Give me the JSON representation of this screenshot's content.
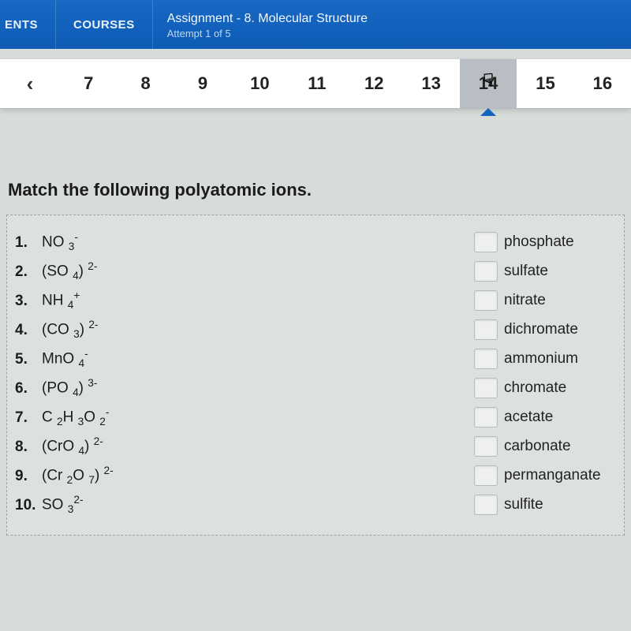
{
  "header": {
    "nav_ents": "ENTS",
    "nav_courses": "COURSES",
    "assignment_prefix": "Assignment",
    "assignment_sep": " - ",
    "assignment_name": "8. Molecular Structure",
    "attempt": "Attempt 1 of 5"
  },
  "qnav": {
    "prev_glyph": "‹",
    "numbers": [
      "7",
      "8",
      "9",
      "10",
      "11",
      "12",
      "13",
      "14",
      "15",
      "16"
    ],
    "current_index": 7
  },
  "question": {
    "title": "Match the following polyatomic ions."
  },
  "items": [
    {
      "n": "1.",
      "formula_html": "NO <sub>3</sub><sup>-</sup>"
    },
    {
      "n": "2.",
      "formula_html": "(SO <sub>4</sub>) <sup>2-</sup>"
    },
    {
      "n": "3.",
      "formula_html": "NH <sub>4</sub><sup>+</sup>"
    },
    {
      "n": "4.",
      "formula_html": "(CO <sub>3</sub>) <sup>2-</sup>"
    },
    {
      "n": "5.",
      "formula_html": "MnO <sub>4</sub><sup>-</sup>"
    },
    {
      "n": "6.",
      "formula_html": "(PO <sub>4</sub>) <sup>3-</sup>"
    },
    {
      "n": "7.",
      "formula_html": "C <sub>2</sub>H <sub>3</sub>O <sub>2</sub><sup>-</sup>"
    },
    {
      "n": "8.",
      "formula_html": "(CrO <sub>4</sub>) <sup>2-</sup>"
    },
    {
      "n": "9.",
      "formula_html": "(Cr <sub>2</sub>O <sub>7</sub>) <sup>2-</sup>"
    },
    {
      "n": "10.",
      "formula_html": "SO <sub>3</sub><sup>2-</sup>"
    }
  ],
  "answers": [
    "phosphate",
    "sulfate",
    "nitrate",
    "dichromate",
    "ammonium",
    "chromate",
    "acetate",
    "carbonate",
    "permanganate",
    "sulfite"
  ],
  "colors": {
    "header_bg": "#1565c0",
    "page_bg": "#d8dcd9",
    "current_q_bg": "#b9bec5",
    "box_border": "#9aa2a8"
  }
}
